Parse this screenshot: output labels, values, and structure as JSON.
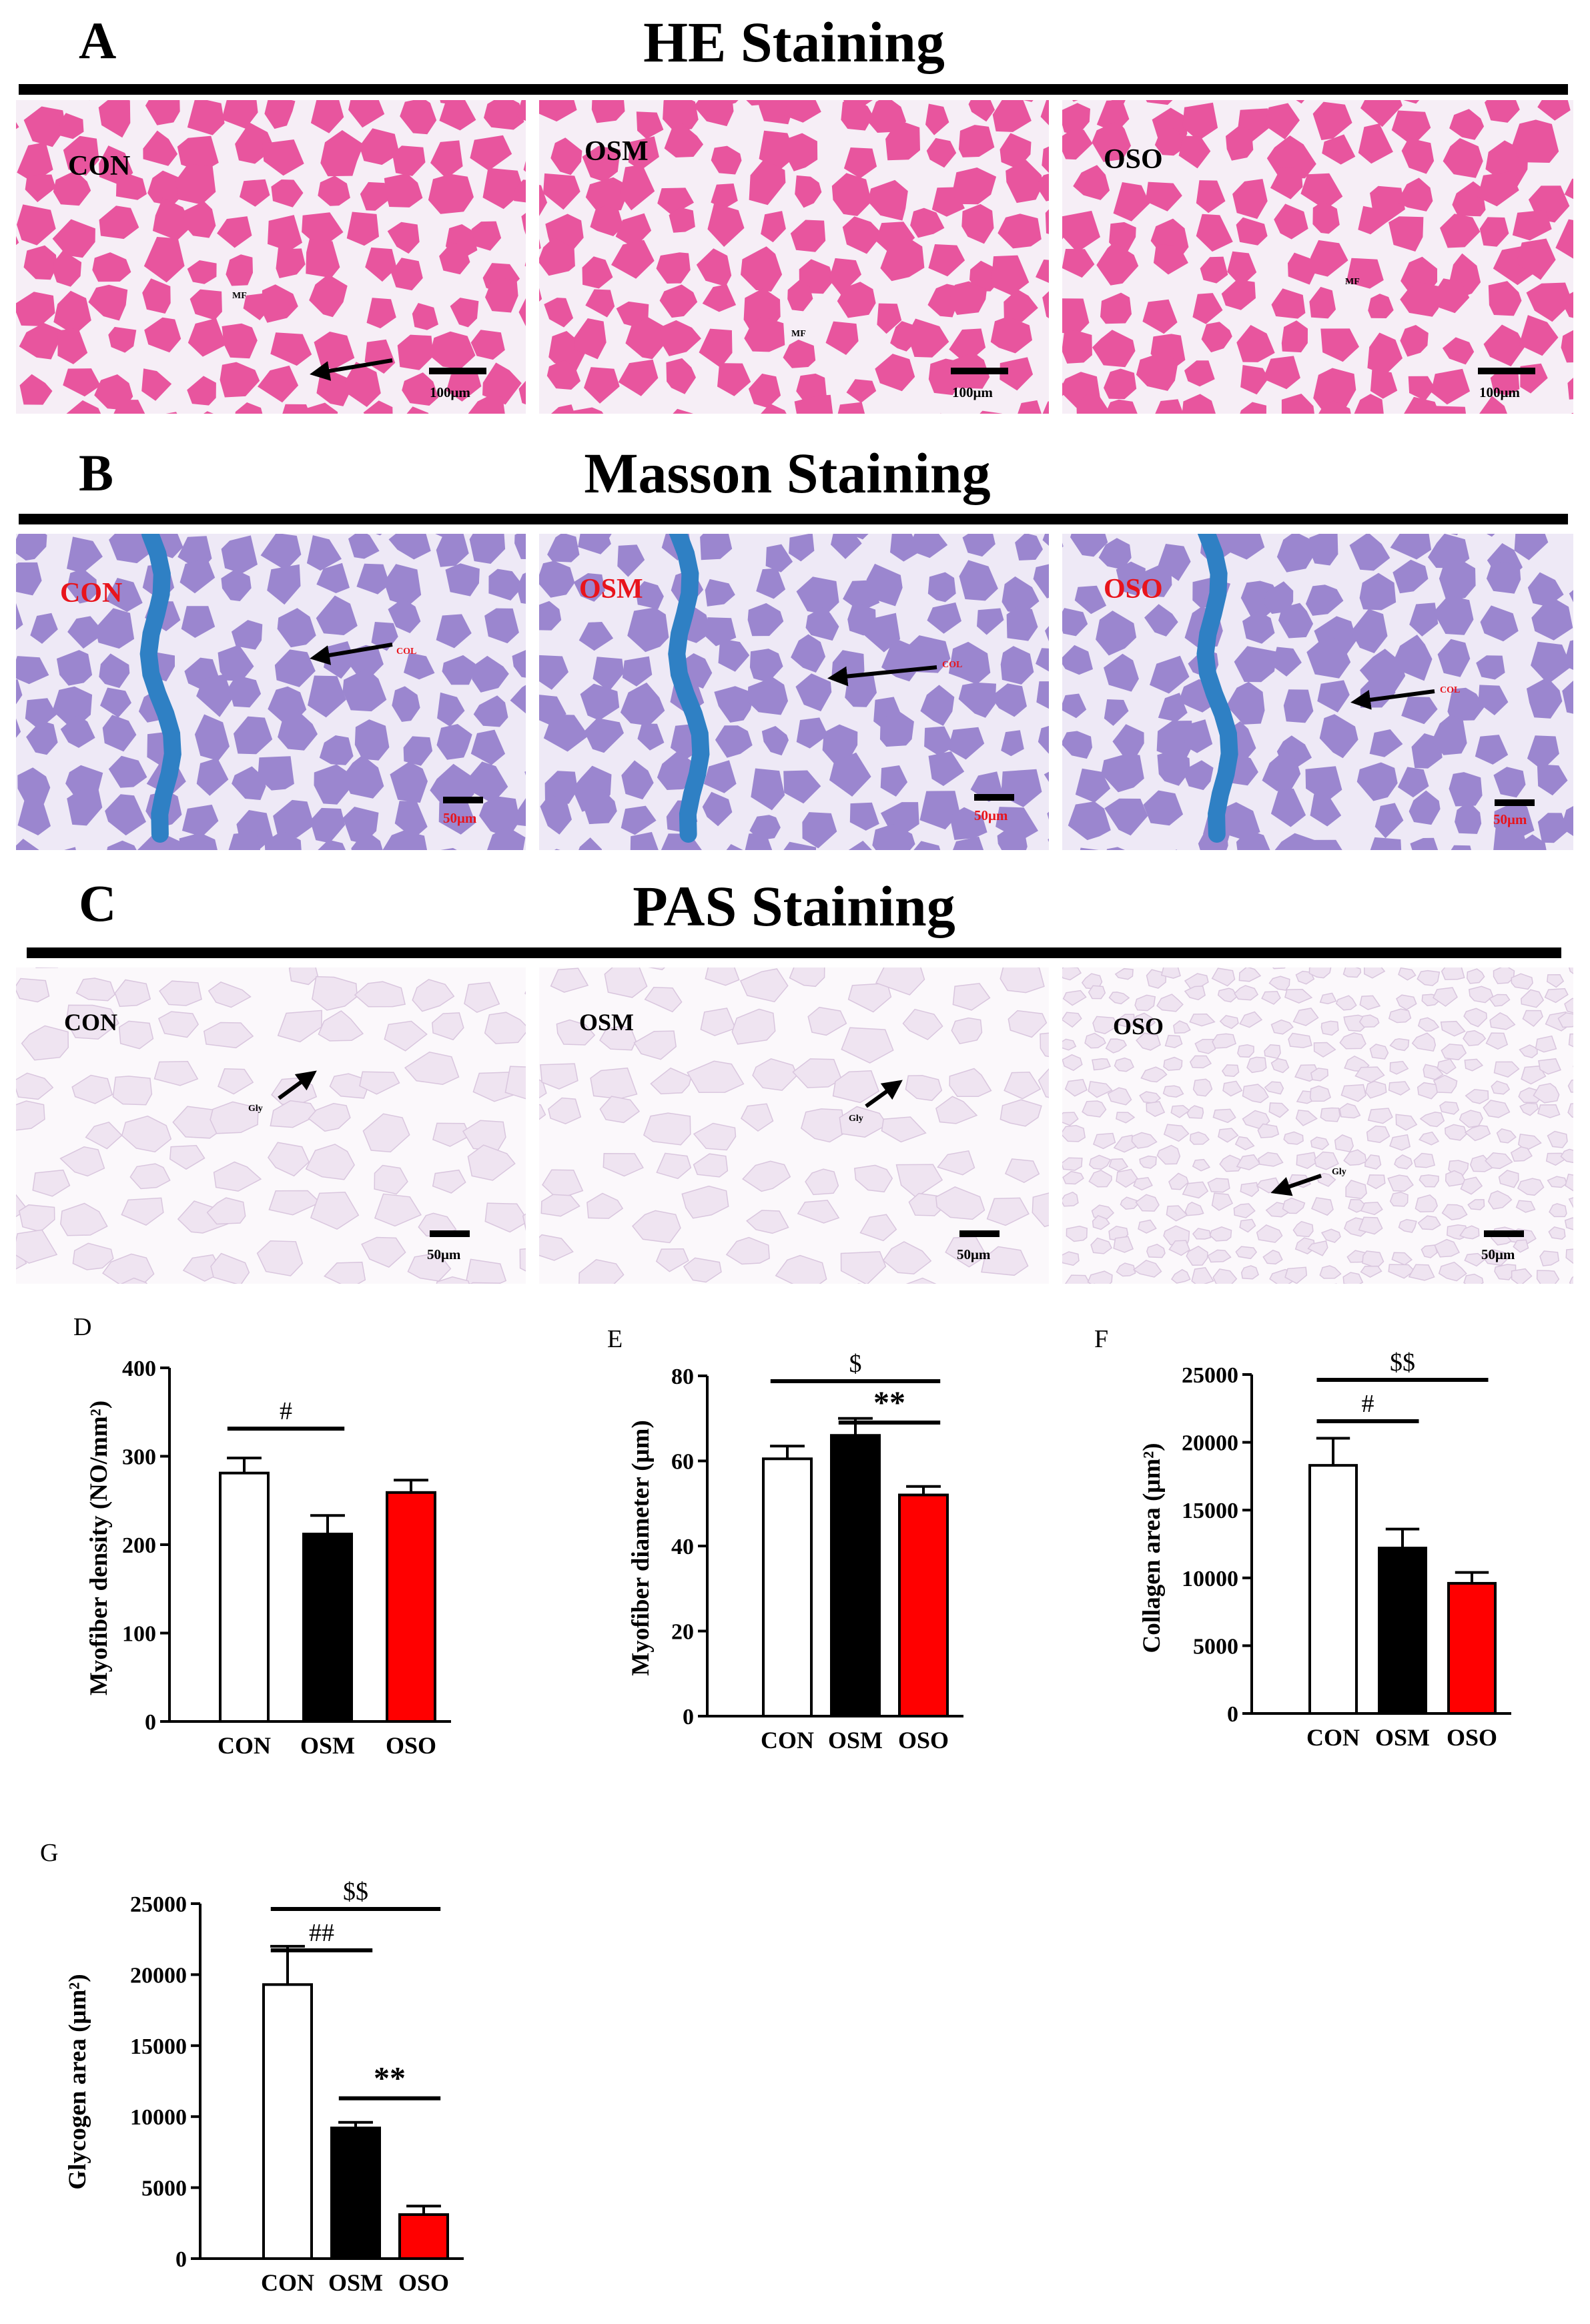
{
  "sections": [
    {
      "letter": "A",
      "title": "HE Staining"
    },
    {
      "letter": "B",
      "title": "Masson Staining"
    },
    {
      "letter": "C",
      "title": "PAS Staining"
    }
  ],
  "panels": {
    "he": [
      {
        "label": "CON",
        "annotation": "MF",
        "scale": "100μm"
      },
      {
        "label": "OSM",
        "annotation": "MF",
        "scale": "100μm"
      },
      {
        "label": "OSO",
        "annotation": "MF",
        "scale": "100μm"
      }
    ],
    "masson": [
      {
        "label": "CON",
        "annotation": "COL",
        "scale": "50μm"
      },
      {
        "label": "OSM",
        "annotation": "COL",
        "scale": "50μm"
      },
      {
        "label": "OSO",
        "annotation": "COL",
        "scale": "50μm"
      }
    ],
    "pas": [
      {
        "label": "CON",
        "annotation": "Gly",
        "scale": "50μm"
      },
      {
        "label": "OSM",
        "annotation": "Gly",
        "scale": "50μm"
      },
      {
        "label": "OSO",
        "annotation": "Gly",
        "scale": "50μm"
      }
    ]
  },
  "colors": {
    "he_fiber": "#e8559e",
    "he_bg": "#f6eef6",
    "masson_fiber": "#9b86cf",
    "masson_bg": "#eee9f6",
    "collagen": "#2f80c4",
    "pas_fiber": "#efe4f1",
    "pas_bg": "#fbf8fb",
    "con": "#ffffff",
    "osm": "#000000",
    "oso": "#ff0000",
    "red_text": "#e8141c"
  },
  "chart_data": [
    {
      "letter": "D",
      "type": "bar",
      "ylabel": "Myofiber density (NO/mm²)",
      "categories": [
        "CON",
        "OSM",
        "OSO"
      ],
      "values": [
        281,
        212,
        259
      ],
      "errors": [
        17,
        21,
        14
      ],
      "ylim": [
        0,
        400
      ],
      "yticks": [
        0,
        100,
        200,
        300,
        400
      ],
      "ytick_labels": [
        "0",
        "100",
        "200",
        "300",
        "400"
      ],
      "sig": [
        {
          "from": 0,
          "to": 1,
          "text": "#"
        }
      ]
    },
    {
      "letter": "E",
      "type": "bar",
      "ylabel": "Myofiber diameter (μm)",
      "categories": [
        "CON",
        "OSM",
        "OSO"
      ],
      "values": [
        60.5,
        66,
        52
      ],
      "errors": [
        3,
        4,
        2
      ],
      "ylim": [
        0,
        80
      ],
      "yticks": [
        0,
        20,
        40,
        60,
        80
      ],
      "ytick_labels": [
        "0",
        "20",
        "40",
        "60",
        "80"
      ],
      "sig": [
        {
          "from": 0,
          "to": 2,
          "text": "$"
        },
        {
          "from": 1,
          "to": 2,
          "text": "**"
        }
      ]
    },
    {
      "letter": "F",
      "type": "bar",
      "ylabel": "Collagen area (μm²)",
      "categories": [
        "CON",
        "OSM",
        "OSO"
      ],
      "values": [
        18300,
        12200,
        9600
      ],
      "errors": [
        2000,
        1400,
        800
      ],
      "ylim": [
        0,
        25000
      ],
      "yticks": [
        0,
        5000,
        10000,
        15000,
        20000,
        25000
      ],
      "ytick_labels": [
        "0",
        "5000",
        "10000",
        "15000",
        "20000",
        "25000"
      ],
      "sig": [
        {
          "from": 0,
          "to": 2,
          "text": "$$"
        },
        {
          "from": 0,
          "to": 1,
          "text": "#"
        }
      ]
    },
    {
      "letter": "G",
      "type": "bar",
      "ylabel": "Glycogen area (μm²)",
      "categories": [
        "CON",
        "OSM",
        "OSO"
      ],
      "values": [
        19300,
        9200,
        3100
      ],
      "errors": [
        2700,
        400,
        600
      ],
      "ylim": [
        0,
        25000
      ],
      "yticks": [
        0,
        5000,
        10000,
        15000,
        20000,
        25000
      ],
      "ytick_labels": [
        "0",
        "5000",
        "10000",
        "15000",
        "20000",
        "25000"
      ],
      "sig": [
        {
          "from": 0,
          "to": 2,
          "text": "$$"
        },
        {
          "from": 0,
          "to": 1,
          "text": "##"
        },
        {
          "from": 1,
          "to": 2,
          "text": "**"
        }
      ]
    }
  ]
}
